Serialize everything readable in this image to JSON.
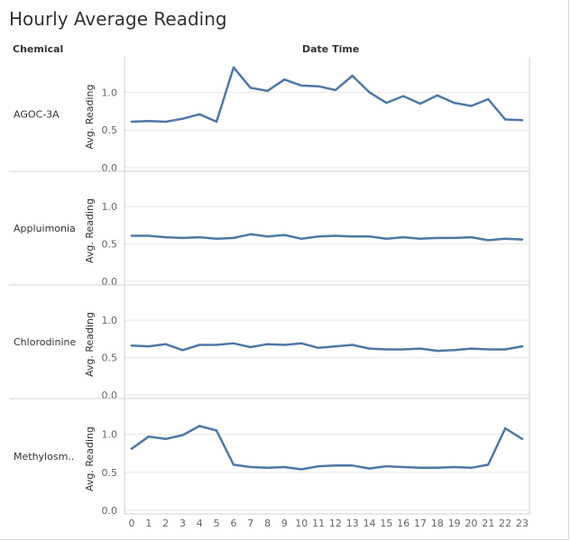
{
  "title": "Hourly Average Reading",
  "header": {
    "row_header": "Chemical",
    "column_header": "Date Time"
  },
  "colors": {
    "line": "#4e79a7",
    "grid": "#e6e6e6",
    "divider": "#d0d0d0",
    "text": "#333333",
    "tick_text": "#666666"
  },
  "chart_data": {
    "type": "line",
    "x_label": "Date Time",
    "y_label": "Avg. Reading",
    "x": [
      0,
      1,
      2,
      3,
      4,
      5,
      6,
      7,
      8,
      9,
      10,
      11,
      12,
      13,
      14,
      15,
      16,
      17,
      18,
      19,
      20,
      21,
      22,
      23
    ],
    "ylim": [
      0,
      1.4
    ],
    "y_ticks": [
      "0.0",
      "0.5",
      "1.0"
    ],
    "grid": true,
    "series": [
      {
        "name": "AGOC-3A",
        "values": [
          0.61,
          0.62,
          0.61,
          0.65,
          0.71,
          0.61,
          1.33,
          1.06,
          1.02,
          1.17,
          1.09,
          1.08,
          1.03,
          1.22,
          1.0,
          0.86,
          0.95,
          0.85,
          0.96,
          0.86,
          0.82,
          0.91,
          0.64,
          0.63
        ]
      },
      {
        "name": "Appluimonia",
        "values": [
          0.61,
          0.61,
          0.59,
          0.58,
          0.59,
          0.57,
          0.58,
          0.63,
          0.6,
          0.62,
          0.57,
          0.6,
          0.61,
          0.6,
          0.6,
          0.57,
          0.59,
          0.57,
          0.58,
          0.58,
          0.59,
          0.55,
          0.57,
          0.56
        ]
      },
      {
        "name": "Chlorodinine",
        "values": [
          0.66,
          0.65,
          0.68,
          0.6,
          0.67,
          0.67,
          0.69,
          0.64,
          0.68,
          0.67,
          0.69,
          0.63,
          0.65,
          0.67,
          0.62,
          0.61,
          0.61,
          0.62,
          0.59,
          0.6,
          0.62,
          0.61,
          0.61,
          0.65
        ]
      },
      {
        "name": "Methylosm..",
        "values": [
          0.81,
          0.97,
          0.94,
          0.99,
          1.11,
          1.05,
          0.6,
          0.57,
          0.56,
          0.57,
          0.54,
          0.58,
          0.59,
          0.59,
          0.55,
          0.58,
          0.57,
          0.56,
          0.56,
          0.57,
          0.56,
          0.6,
          1.08,
          0.94
        ]
      }
    ]
  }
}
